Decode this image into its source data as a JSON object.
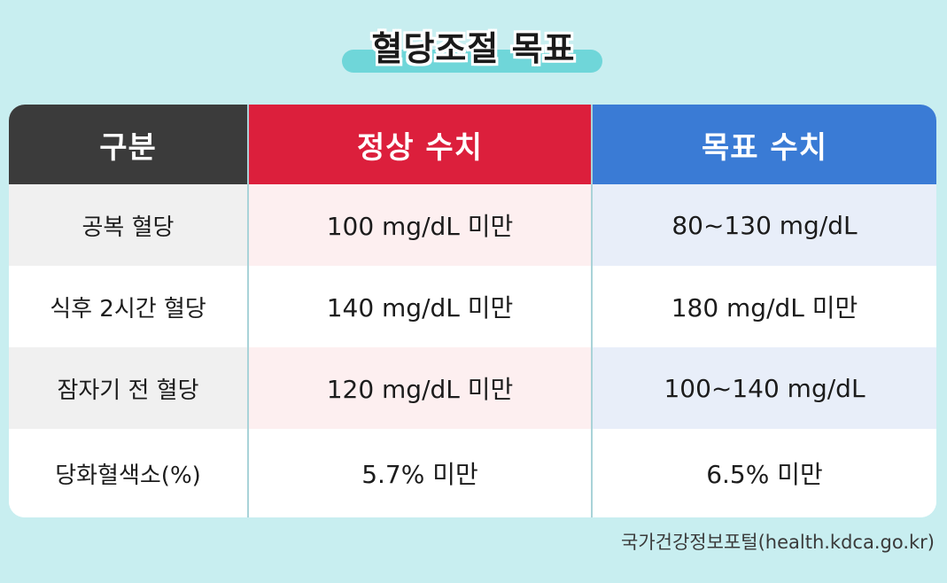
{
  "title": "혈당조절 목표",
  "table": {
    "headers": [
      "구분",
      "정상 수치",
      "목표 수치"
    ],
    "rows": [
      [
        "공복 혈당",
        "100 mg/dL 미만",
        "80~130 mg/dL"
      ],
      [
        "식후 2시간 혈당",
        "140 mg/dL 미만",
        "180 mg/dL 미만"
      ],
      [
        "잠자기 전 혈당",
        "120 mg/dL 미만",
        "100~140 mg/dL"
      ],
      [
        "당화혈색소(%)",
        "5.7% 미만",
        "6.5% 미만"
      ]
    ]
  },
  "source": "국가건강정보포털(health.kdca.go.kr)",
  "colors": {
    "background": "#c8eef0",
    "header_category": "#3b3b3b",
    "header_normal": "#dc1f3c",
    "header_target": "#3a7bd5",
    "title_highlight": "#6fd6d9"
  }
}
